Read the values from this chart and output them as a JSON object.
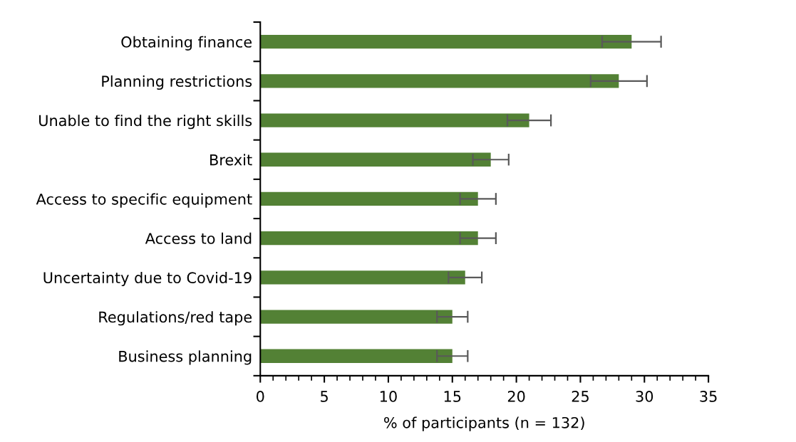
{
  "chart_data": {
    "type": "bar",
    "orientation": "horizontal",
    "xlabel": "% of participants (n = 132)",
    "categories": [
      "Obtaining finance",
      "Planning restrictions",
      "Unable to find the right skills",
      "Brexit",
      "Access to specific equipment",
      "Access to land",
      "Uncertainty due to Covid-19",
      "Regulations/red tape",
      "Business planning"
    ],
    "values": [
      29,
      28,
      21,
      18,
      17,
      17,
      16,
      15,
      15
    ],
    "errors": [
      2.3,
      2.2,
      1.7,
      1.4,
      1.4,
      1.4,
      1.3,
      1.2,
      1.2
    ],
    "color": "#538135",
    "xlim": [
      0,
      35
    ],
    "xticks": [
      0,
      5,
      10,
      15,
      20,
      25,
      30,
      35
    ],
    "grid": false,
    "legend": false
  }
}
